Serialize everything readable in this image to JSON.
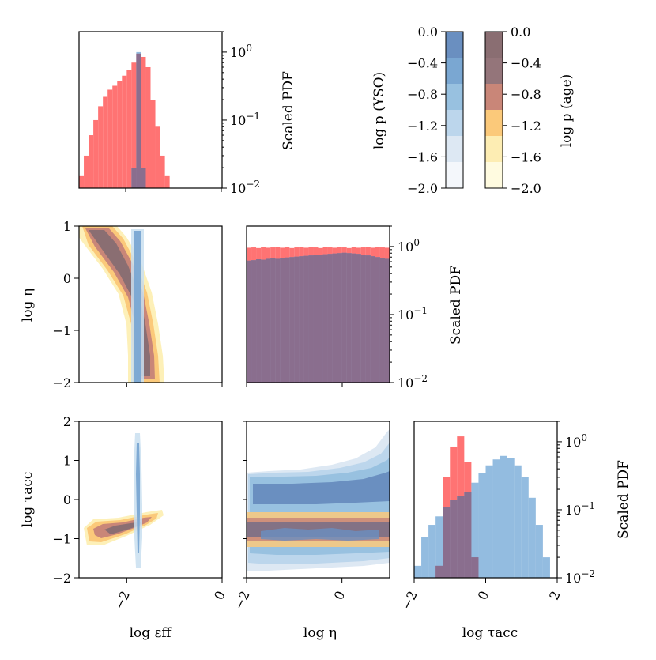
{
  "chart_data": {
    "type": "corner-plot",
    "series_colors": {
      "age": "#ff6b6b",
      "yso": "#6fa6d6",
      "overlap": "#8a6e8e"
    },
    "colorbars": {
      "yso": {
        "label": "log p (YSO)",
        "levels": [
          0.0,
          -0.4,
          -0.8,
          -1.2,
          -1.6,
          -2.0
        ],
        "tick_labels": [
          "0.0",
          "−0.4",
          "−0.8",
          "−1.2",
          "−1.6",
          "−2.0"
        ],
        "colors": [
          "#f4f7fb",
          "#dde8f3",
          "#bcd6ec",
          "#98c1e0",
          "#7aa7d2",
          "#6a8fc0"
        ]
      },
      "age": {
        "label": "log p (age)",
        "levels": [
          0.0,
          -0.4,
          -0.8,
          -1.2,
          -1.6,
          -2.0
        ],
        "tick_labels": [
          "0.0",
          "−0.4",
          "−0.8",
          "−1.2",
          "−1.6",
          "−2.0"
        ],
        "colors": [
          "#fffbe0",
          "#fdedb3",
          "#fbc97a",
          "#c98678",
          "#94757a",
          "#8a6e72"
        ]
      }
    },
    "pdf_axis": {
      "label": "Scaled PDF",
      "ylim": [
        0.01,
        2.0
      ],
      "tick_labels": [
        "10^0",
        "10^−1",
        "10^−2"
      ]
    },
    "axes": {
      "log_eff": {
        "label": "log εff",
        "xlim": [
          -3,
          0
        ],
        "tick_labels": [
          "−2",
          "0"
        ]
      },
      "log_eta": {
        "label": "log η",
        "xlim": [
          -2,
          1
        ],
        "ylim": [
          -2,
          1
        ],
        "x_tick_labels": [
          "−2",
          "0"
        ],
        "y_tick_labels": [
          "1",
          "0",
          "−1",
          "−2"
        ]
      },
      "log_tau": {
        "label": "log τacc",
        "xlim": [
          -2,
          2
        ],
        "ylim": [
          -2,
          2
        ],
        "x_tick_labels": [
          "−2",
          "0",
          "2"
        ],
        "y_tick_labels": [
          "2",
          "1",
          "0",
          "−1",
          "−2"
        ]
      }
    },
    "hist_eff": {
      "bins": [
        -3.0,
        -2.9,
        -2.8,
        -2.7,
        -2.6,
        -2.5,
        -2.4,
        -2.3,
        -2.2,
        -2.1,
        -2.0,
        -1.9,
        -1.8,
        -1.7,
        -1.6,
        -1.5,
        -1.4,
        -1.3,
        -1.2,
        -1.1
      ],
      "age": [
        0.015,
        0.03,
        0.06,
        0.1,
        0.16,
        0.22,
        0.28,
        0.32,
        0.38,
        0.45,
        0.55,
        0.7,
        0.95,
        0.85,
        0.6,
        0.2,
        0.08,
        0.03,
        0.015
      ],
      "yso": [
        0,
        0,
        0,
        0,
        0,
        0,
        0,
        0,
        0,
        0,
        0,
        0.02,
        1.0,
        0.02,
        0,
        0,
        0,
        0,
        0
      ]
    },
    "hist_eta": {
      "bins": [
        -2.0,
        -1.9,
        -1.8,
        -1.7,
        -1.6,
        -1.5,
        -1.4,
        -1.3,
        -1.2,
        -1.1,
        -1.0,
        -0.9,
        -0.8,
        -0.7,
        -0.6,
        -0.5,
        -0.4,
        -0.3,
        -0.2,
        -0.1,
        0.0,
        0.1,
        0.2,
        0.3,
        0.4,
        0.5,
        0.6,
        0.7,
        0.8,
        0.9,
        1.0
      ],
      "age": [
        0.96,
        0.97,
        0.95,
        0.98,
        0.96,
        0.97,
        0.99,
        0.96,
        0.98,
        0.95,
        0.97,
        0.98,
        0.96,
        0.99,
        0.97,
        0.95,
        0.98,
        0.97,
        0.96,
        0.99,
        0.97,
        0.95,
        0.98,
        0.96,
        0.97,
        0.98,
        0.96,
        0.99,
        0.97,
        0.96
      ],
      "yso": [
        0.62,
        0.63,
        0.65,
        0.64,
        0.66,
        0.67,
        0.66,
        0.68,
        0.69,
        0.7,
        0.71,
        0.72,
        0.73,
        0.74,
        0.75,
        0.76,
        0.77,
        0.78,
        0.79,
        0.8,
        0.81,
        0.8,
        0.79,
        0.78,
        0.76,
        0.74,
        0.72,
        0.7,
        0.68,
        0.66
      ]
    },
    "hist_tau": {
      "bins": [
        -2.0,
        -1.8,
        -1.6,
        -1.4,
        -1.2,
        -1.0,
        -0.8,
        -0.6,
        -0.4,
        -0.2,
        0.0,
        0.2,
        0.4,
        0.6,
        0.8,
        1.0,
        1.2,
        1.4,
        1.6,
        1.8,
        2.0
      ],
      "age": [
        0,
        0,
        0,
        0.015,
        0.3,
        0.85,
        1.2,
        0.5,
        0.02,
        0,
        0,
        0,
        0,
        0,
        0,
        0,
        0,
        0,
        0,
        0
      ],
      "yso": [
        0.015,
        0.04,
        0.06,
        0.08,
        0.11,
        0.14,
        0.16,
        0.18,
        0.25,
        0.35,
        0.45,
        0.55,
        0.62,
        0.58,
        0.45,
        0.3,
        0.15,
        0.06,
        0.02,
        0.01
      ]
    }
  }
}
